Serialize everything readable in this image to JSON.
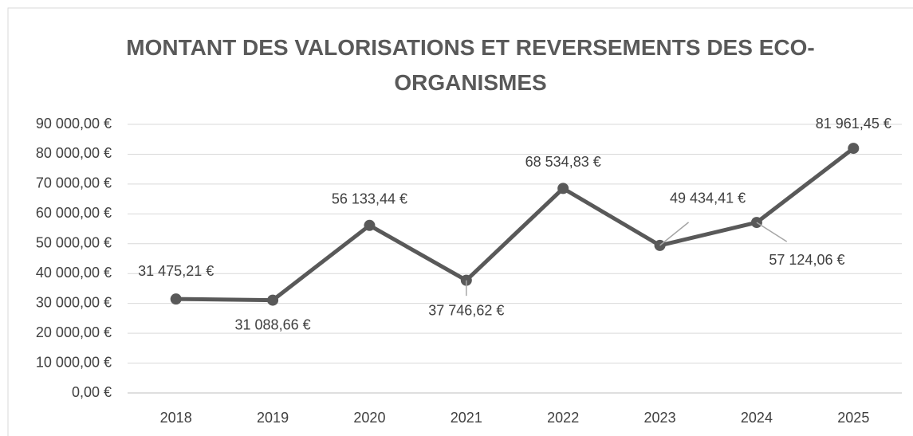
{
  "chart_data": {
    "type": "line",
    "title": "MONTANT DES VALORISATIONS ET REVERSEMENTS DES ECO-ORGANISMES",
    "categories": [
      "2018",
      "2019",
      "2020",
      "2021",
      "2022",
      "2023",
      "2024",
      "2025"
    ],
    "series": [
      {
        "color": "#595959",
        "values": [
          31475.21,
          31088.66,
          56133.44,
          37746.62,
          68534.83,
          49434.41,
          57124.06,
          81961.45
        ],
        "value_labels": [
          "31 475,21 €",
          "31 088,66 €",
          "56 133,44 €",
          "37 746,62 €",
          "68 534,83 €",
          "49 434,41 €",
          "57 124,06 €",
          "81 961,45 €"
        ]
      }
    ],
    "ylim": [
      0,
      90000
    ],
    "yticks": [
      {
        "value": 0,
        "label": "0,00 €"
      },
      {
        "value": 10000,
        "label": "10 000,00 €"
      },
      {
        "value": 20000,
        "label": "20 000,00 €"
      },
      {
        "value": 30000,
        "label": "30 000,00 €"
      },
      {
        "value": 40000,
        "label": "40 000,00 €"
      },
      {
        "value": 50000,
        "label": "50 000,00 €"
      },
      {
        "value": 60000,
        "label": "60 000,00 €"
      },
      {
        "value": 70000,
        "label": "70 000,00 €"
      },
      {
        "value": 80000,
        "label": "80 000,00 €"
      },
      {
        "value": 90000,
        "label": "90 000,00 €"
      }
    ],
    "grid": true
  }
}
